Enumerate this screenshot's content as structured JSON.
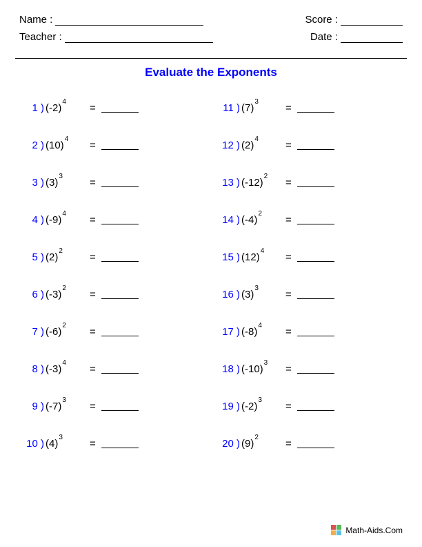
{
  "header": {
    "name_label": "Name :",
    "teacher_label": "Teacher :",
    "score_label": "Score :",
    "date_label": "Date :"
  },
  "title": "Evaluate the Exponents",
  "equals": "=",
  "problems_left": [
    {
      "num": "1 )",
      "base": "(-2)",
      "exp": "4"
    },
    {
      "num": "2 )",
      "base": "(10)",
      "exp": "4"
    },
    {
      "num": "3 )",
      "base": "(3)",
      "exp": "3"
    },
    {
      "num": "4 )",
      "base": "(-9)",
      "exp": "4"
    },
    {
      "num": "5 )",
      "base": "(2)",
      "exp": "2"
    },
    {
      "num": "6 )",
      "base": "(-3)",
      "exp": "2"
    },
    {
      "num": "7 )",
      "base": "(-6)",
      "exp": "2"
    },
    {
      "num": "8 )",
      "base": "(-3)",
      "exp": "4"
    },
    {
      "num": "9 )",
      "base": "(-7)",
      "exp": "3"
    },
    {
      "num": "10 )",
      "base": "(4)",
      "exp": "3"
    }
  ],
  "problems_right": [
    {
      "num": "11 )",
      "base": "(7)",
      "exp": "3"
    },
    {
      "num": "12 )",
      "base": "(2)",
      "exp": "4"
    },
    {
      "num": "13 )",
      "base": "(-12)",
      "exp": "2"
    },
    {
      "num": "14 )",
      "base": "(-4)",
      "exp": "2"
    },
    {
      "num": "15 )",
      "base": "(12)",
      "exp": "4"
    },
    {
      "num": "16 )",
      "base": "(3)",
      "exp": "3"
    },
    {
      "num": "17 )",
      "base": "(-8)",
      "exp": "4"
    },
    {
      "num": "18 )",
      "base": "(-10)",
      "exp": "3"
    },
    {
      "num": "19 )",
      "base": "(-2)",
      "exp": "3"
    },
    {
      "num": "20 )",
      "base": "(9)",
      "exp": "2"
    }
  ],
  "footer": {
    "site": "Math-Aids.Com",
    "icon_colors": [
      "#d9534f",
      "#5cb85c",
      "#f0ad4e",
      "#5bc0de"
    ]
  },
  "colors": {
    "accent": "#0000ff",
    "text": "#000000",
    "background": "#ffffff"
  }
}
